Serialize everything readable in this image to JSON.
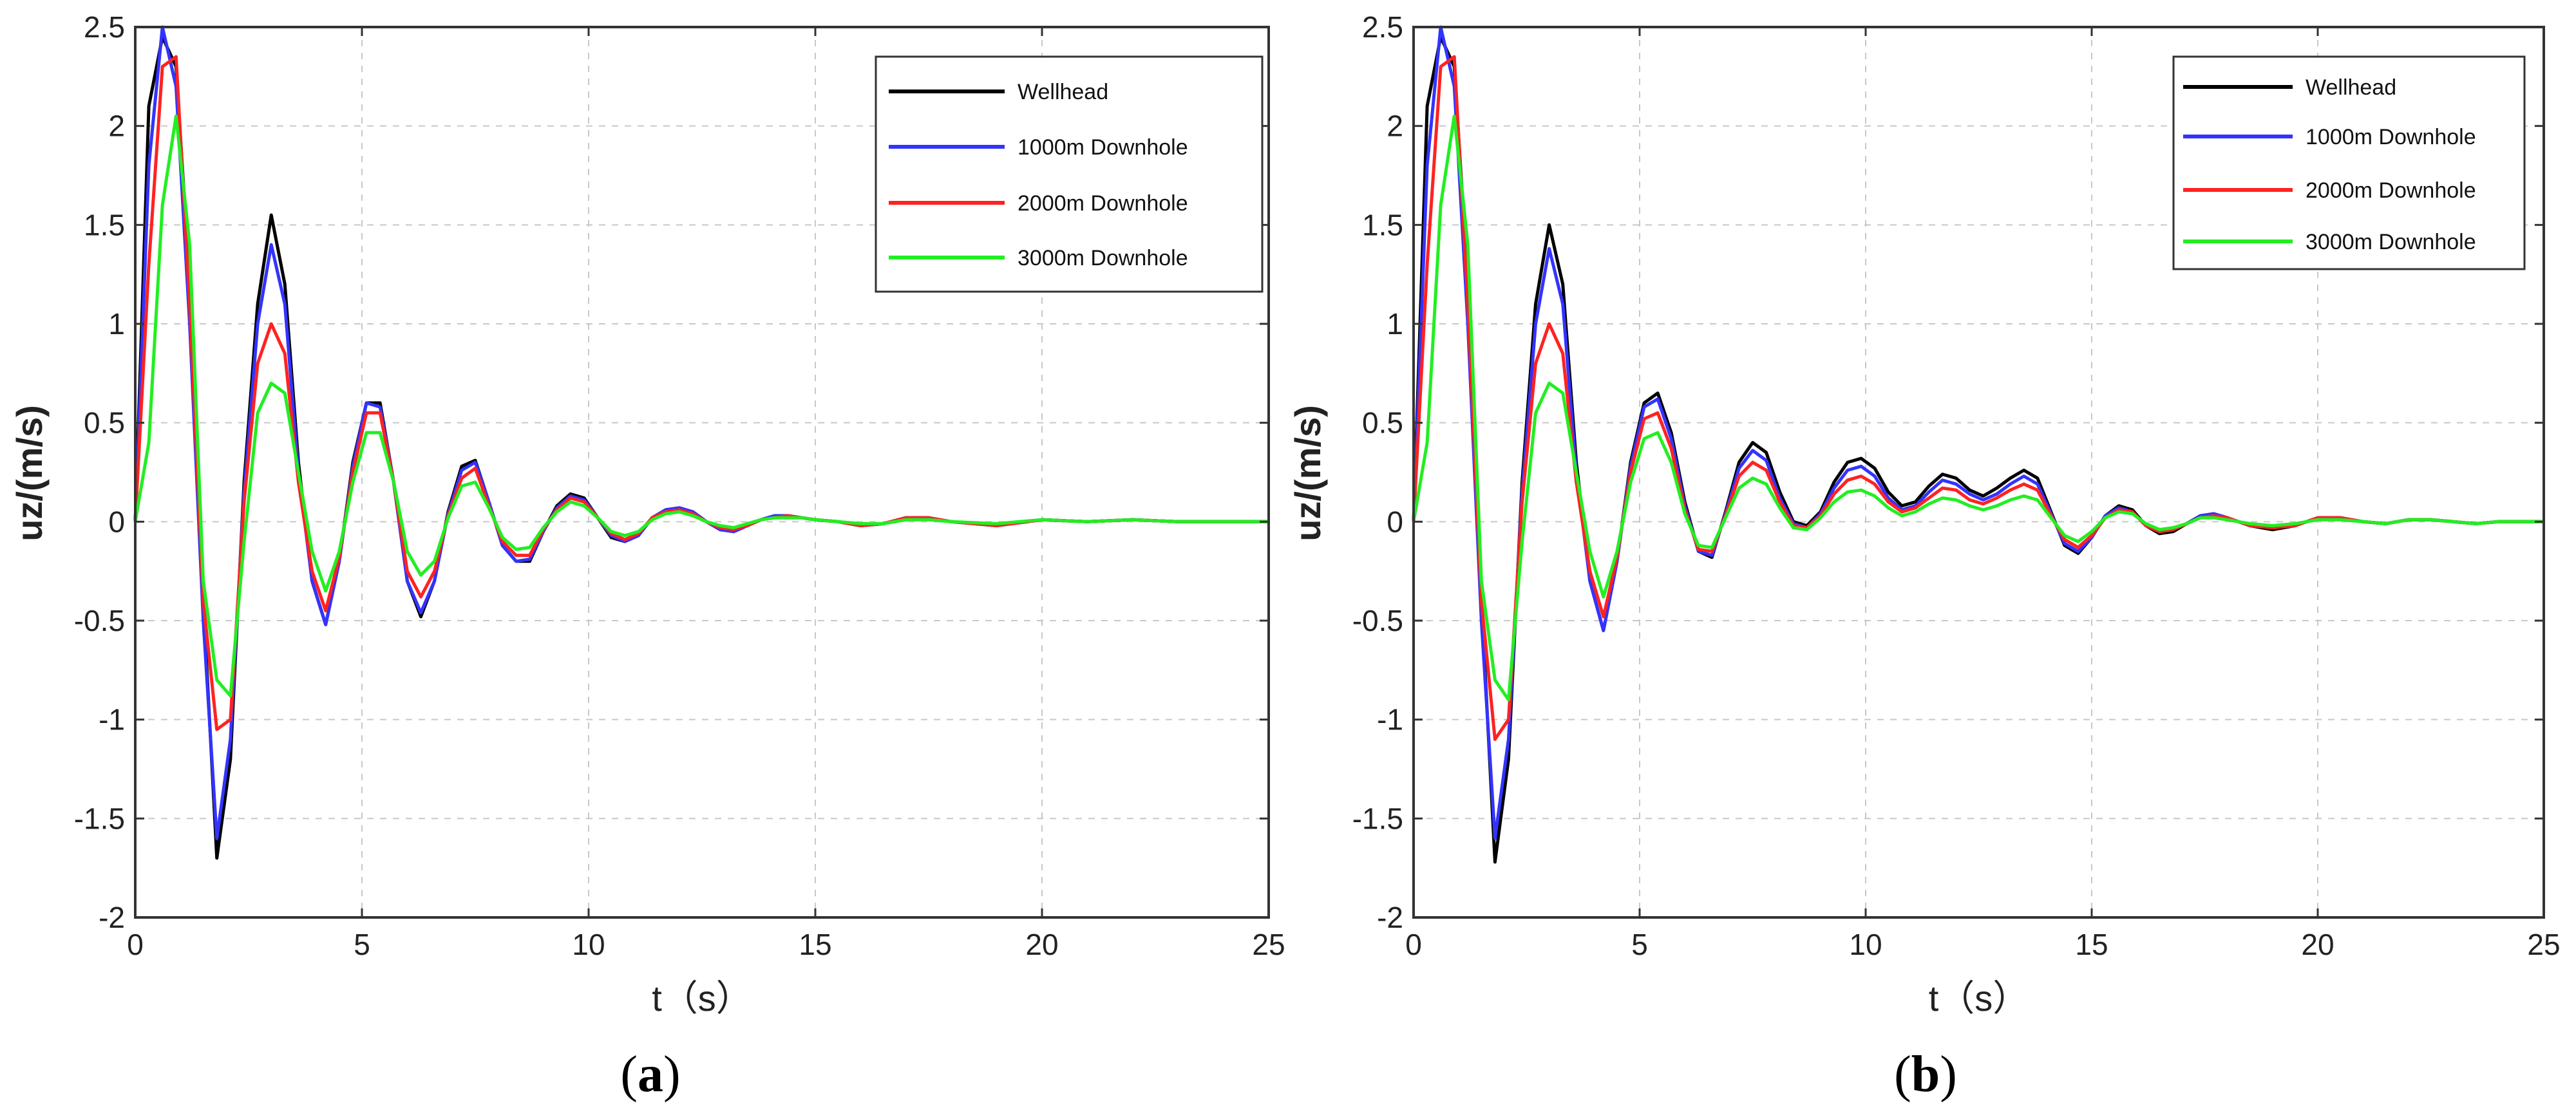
{
  "chart_data": [
    {
      "type": "line",
      "panel_label": "a",
      "xlabel": "t（s）",
      "ylabel": "uz/(m/s)",
      "xlim": [
        0,
        25
      ],
      "ylim": [
        -2,
        2.5
      ],
      "xticks": [
        0,
        5,
        10,
        15,
        20,
        25
      ],
      "yticks": [
        -2,
        -1.5,
        -1,
        -0.5,
        0,
        0.5,
        1,
        1.5,
        2,
        2.5
      ],
      "grid": true,
      "legend_position": "top-right",
      "x": [
        0,
        0.3,
        0.6,
        0.9,
        1.2,
        1.5,
        1.8,
        2.1,
        2.4,
        2.7,
        3.0,
        3.3,
        3.6,
        3.9,
        4.2,
        4.5,
        4.8,
        5.1,
        5.4,
        5.7,
        6.0,
        6.3,
        6.6,
        6.9,
        7.2,
        7.5,
        7.8,
        8.1,
        8.4,
        8.7,
        9.0,
        9.3,
        9.6,
        9.9,
        10.2,
        10.5,
        10.8,
        11.1,
        11.4,
        11.7,
        12.0,
        12.3,
        12.6,
        12.9,
        13.2,
        13.5,
        13.8,
        14.1,
        14.4,
        14.7,
        15.0,
        15.5,
        16.0,
        16.5,
        17.0,
        17.5,
        18.0,
        19.0,
        20.0,
        21.0,
        22.0,
        23.0,
        24.0,
        25.0
      ],
      "series": [
        {
          "name": "Wellhead",
          "color": "#000000",
          "values": [
            0,
            2.1,
            2.45,
            2.3,
            1.2,
            -0.4,
            -1.7,
            -1.2,
            0.2,
            1.1,
            1.55,
            1.2,
            0.3,
            -0.3,
            -0.52,
            -0.2,
            0.3,
            0.6,
            0.6,
            0.2,
            -0.3,
            -0.48,
            -0.3,
            0.05,
            0.28,
            0.31,
            0.1,
            -0.12,
            -0.2,
            -0.2,
            -0.05,
            0.08,
            0.14,
            0.12,
            0.02,
            -0.08,
            -0.1,
            -0.07,
            0.02,
            0.06,
            0.07,
            0.05,
            0,
            -0.04,
            -0.05,
            -0.02,
            0.01,
            0.03,
            0.03,
            0.02,
            0.01,
            0,
            -0.02,
            -0.01,
            0.02,
            0.02,
            0,
            -0.02,
            0.01,
            0,
            0.01,
            0,
            0,
            0
          ]
        },
        {
          "name": "1000m Downhole",
          "color": "#3333ff",
          "values": [
            0,
            1.8,
            2.5,
            2.2,
            1.0,
            -0.5,
            -1.6,
            -1.1,
            0.15,
            1.0,
            1.4,
            1.1,
            0.25,
            -0.3,
            -0.52,
            -0.2,
            0.28,
            0.6,
            0.58,
            0.2,
            -0.3,
            -0.46,
            -0.3,
            0.04,
            0.26,
            0.3,
            0.1,
            -0.12,
            -0.2,
            -0.19,
            -0.05,
            0.07,
            0.13,
            0.11,
            0.02,
            -0.07,
            -0.1,
            -0.07,
            0.02,
            0.06,
            0.07,
            0.05,
            0,
            -0.04,
            -0.05,
            -0.02,
            0.01,
            0.03,
            0.03,
            0.02,
            0.01,
            0,
            -0.02,
            -0.01,
            0.02,
            0.02,
            0,
            -0.02,
            0.01,
            0,
            0.01,
            0,
            0,
            0
          ]
        },
        {
          "name": "2000m Downhole",
          "color": "#ff2222",
          "values": [
            0,
            1.3,
            2.3,
            2.35,
            1.1,
            -0.4,
            -1.05,
            -1.0,
            0.1,
            0.8,
            1.0,
            0.85,
            0.2,
            -0.25,
            -0.45,
            -0.18,
            0.25,
            0.55,
            0.55,
            0.2,
            -0.25,
            -0.38,
            -0.25,
            0.03,
            0.22,
            0.27,
            0.08,
            -0.1,
            -0.17,
            -0.17,
            -0.04,
            0.06,
            0.12,
            0.1,
            0.02,
            -0.06,
            -0.09,
            -0.06,
            0.02,
            0.05,
            0.06,
            0.04,
            0,
            -0.03,
            -0.04,
            -0.02,
            0.01,
            0.02,
            0.03,
            0.02,
            0.01,
            0,
            -0.02,
            -0.01,
            0.02,
            0.02,
            0,
            -0.02,
            0.01,
            0,
            0.01,
            0,
            0,
            0
          ]
        },
        {
          "name": "3000m Downhole",
          "color": "#22ee22",
          "values": [
            0,
            0.4,
            1.6,
            2.05,
            1.4,
            -0.3,
            -0.8,
            -0.88,
            -0.1,
            0.55,
            0.7,
            0.65,
            0.25,
            -0.15,
            -0.35,
            -0.15,
            0.2,
            0.45,
            0.45,
            0.2,
            -0.15,
            -0.27,
            -0.2,
            0.02,
            0.18,
            0.2,
            0.07,
            -0.08,
            -0.14,
            -0.13,
            -0.03,
            0.05,
            0.1,
            0.08,
            0.02,
            -0.05,
            -0.07,
            -0.05,
            0.01,
            0.04,
            0.05,
            0.03,
            0,
            -0.02,
            -0.03,
            -0.01,
            0.01,
            0.02,
            0.02,
            0.02,
            0.01,
            0,
            -0.01,
            -0.01,
            0.01,
            0.01,
            0,
            -0.01,
            0.01,
            0,
            0.01,
            0,
            0,
            0
          ]
        }
      ]
    },
    {
      "type": "line",
      "panel_label": "b",
      "xlabel": "t（s）",
      "ylabel": "uz/(m/s)",
      "xlim": [
        0,
        25
      ],
      "ylim": [
        -2,
        2.5
      ],
      "xticks": [
        0,
        5,
        10,
        15,
        20,
        25
      ],
      "yticks": [
        -2,
        -1.5,
        -1,
        -0.5,
        0,
        0.5,
        1,
        1.5,
        2,
        2.5
      ],
      "grid": true,
      "legend_position": "top-right",
      "x": [
        0,
        0.3,
        0.6,
        0.9,
        1.2,
        1.5,
        1.8,
        2.1,
        2.4,
        2.7,
        3.0,
        3.3,
        3.6,
        3.9,
        4.2,
        4.5,
        4.8,
        5.1,
        5.4,
        5.7,
        6.0,
        6.3,
        6.6,
        6.9,
        7.2,
        7.5,
        7.8,
        8.1,
        8.4,
        8.7,
        9.0,
        9.3,
        9.6,
        9.9,
        10.2,
        10.5,
        10.8,
        11.1,
        11.4,
        11.7,
        12.0,
        12.3,
        12.6,
        12.9,
        13.2,
        13.5,
        13.8,
        14.1,
        14.4,
        14.7,
        15.0,
        15.3,
        15.6,
        15.9,
        16.2,
        16.5,
        16.8,
        17.1,
        17.4,
        17.7,
        18.0,
        18.5,
        19.0,
        19.5,
        20.0,
        20.5,
        21.0,
        21.5,
        22.0,
        22.5,
        23.0,
        23.5,
        24.0,
        24.5,
        25.0
      ],
      "series": [
        {
          "name": "Wellhead",
          "color": "#000000",
          "values": [
            0,
            2.1,
            2.45,
            2.3,
            1.2,
            -0.4,
            -1.72,
            -1.2,
            0.2,
            1.1,
            1.5,
            1.2,
            0.3,
            -0.3,
            -0.55,
            -0.2,
            0.3,
            0.6,
            0.65,
            0.45,
            0.1,
            -0.15,
            -0.18,
            0.05,
            0.3,
            0.4,
            0.35,
            0.15,
            0.0,
            -0.02,
            0.05,
            0.2,
            0.3,
            0.32,
            0.27,
            0.15,
            0.08,
            0.1,
            0.18,
            0.24,
            0.22,
            0.16,
            0.13,
            0.17,
            0.22,
            0.26,
            0.22,
            0.05,
            -0.12,
            -0.16,
            -0.08,
            0.03,
            0.08,
            0.06,
            -0.02,
            -0.06,
            -0.05,
            -0.01,
            0.03,
            0.04,
            0.02,
            -0.02,
            -0.04,
            -0.02,
            0.02,
            0.02,
            0,
            -0.01,
            0.01,
            0.01,
            0,
            -0.01,
            0,
            0,
            0
          ]
        },
        {
          "name": "1000m Downhole",
          "color": "#3333ff",
          "values": [
            0,
            1.8,
            2.5,
            2.2,
            1.0,
            -0.5,
            -1.6,
            -1.1,
            0.15,
            1.0,
            1.38,
            1.1,
            0.25,
            -0.3,
            -0.55,
            -0.2,
            0.28,
            0.58,
            0.62,
            0.42,
            0.08,
            -0.15,
            -0.17,
            0.04,
            0.27,
            0.36,
            0.31,
            0.12,
            -0.01,
            -0.03,
            0.04,
            0.17,
            0.26,
            0.28,
            0.23,
            0.12,
            0.06,
            0.08,
            0.15,
            0.21,
            0.19,
            0.14,
            0.11,
            0.14,
            0.19,
            0.23,
            0.19,
            0.04,
            -0.11,
            -0.15,
            -0.08,
            0.03,
            0.07,
            0.05,
            -0.02,
            -0.05,
            -0.04,
            -0.01,
            0.03,
            0.04,
            0.02,
            -0.02,
            -0.03,
            -0.02,
            0.02,
            0.02,
            0,
            -0.01,
            0.01,
            0.01,
            0,
            -0.01,
            0,
            0,
            0
          ]
        },
        {
          "name": "2000m Downhole",
          "color": "#ff2222",
          "values": [
            0,
            1.3,
            2.3,
            2.35,
            1.1,
            -0.4,
            -1.1,
            -1.0,
            0.1,
            0.8,
            1.0,
            0.85,
            0.2,
            -0.25,
            -0.48,
            -0.18,
            0.25,
            0.52,
            0.55,
            0.37,
            0.06,
            -0.14,
            -0.15,
            0.03,
            0.23,
            0.3,
            0.26,
            0.1,
            -0.02,
            -0.03,
            0.03,
            0.14,
            0.21,
            0.23,
            0.19,
            0.1,
            0.05,
            0.07,
            0.12,
            0.17,
            0.16,
            0.11,
            0.09,
            0.12,
            0.16,
            0.19,
            0.16,
            0.03,
            -0.09,
            -0.13,
            -0.07,
            0.02,
            0.06,
            0.05,
            -0.02,
            -0.05,
            -0.04,
            -0.01,
            0.02,
            0.03,
            0.02,
            -0.02,
            -0.03,
            -0.02,
            0.02,
            0.02,
            0,
            -0.01,
            0.01,
            0.01,
            0,
            -0.01,
            0,
            0,
            0
          ]
        },
        {
          "name": "3000m Downhole",
          "color": "#22ee22",
          "values": [
            0,
            0.4,
            1.6,
            2.05,
            1.4,
            -0.3,
            -0.8,
            -0.9,
            -0.1,
            0.55,
            0.7,
            0.65,
            0.25,
            -0.15,
            -0.38,
            -0.15,
            0.2,
            0.42,
            0.45,
            0.3,
            0.04,
            -0.12,
            -0.13,
            0.02,
            0.17,
            0.22,
            0.19,
            0.07,
            -0.03,
            -0.04,
            0.02,
            0.1,
            0.15,
            0.16,
            0.13,
            0.07,
            0.03,
            0.05,
            0.09,
            0.12,
            0.11,
            0.08,
            0.06,
            0.08,
            0.11,
            0.13,
            0.11,
            0.02,
            -0.07,
            -0.1,
            -0.05,
            0.02,
            0.05,
            0.04,
            -0.01,
            -0.04,
            -0.03,
            -0.01,
            0.02,
            0.02,
            0.01,
            -0.01,
            -0.02,
            -0.01,
            0.01,
            0.01,
            0,
            -0.01,
            0.01,
            0.01,
            0,
            -0.01,
            0,
            0,
            0
          ]
        }
      ]
    }
  ],
  "captions": [
    "a",
    "b"
  ]
}
